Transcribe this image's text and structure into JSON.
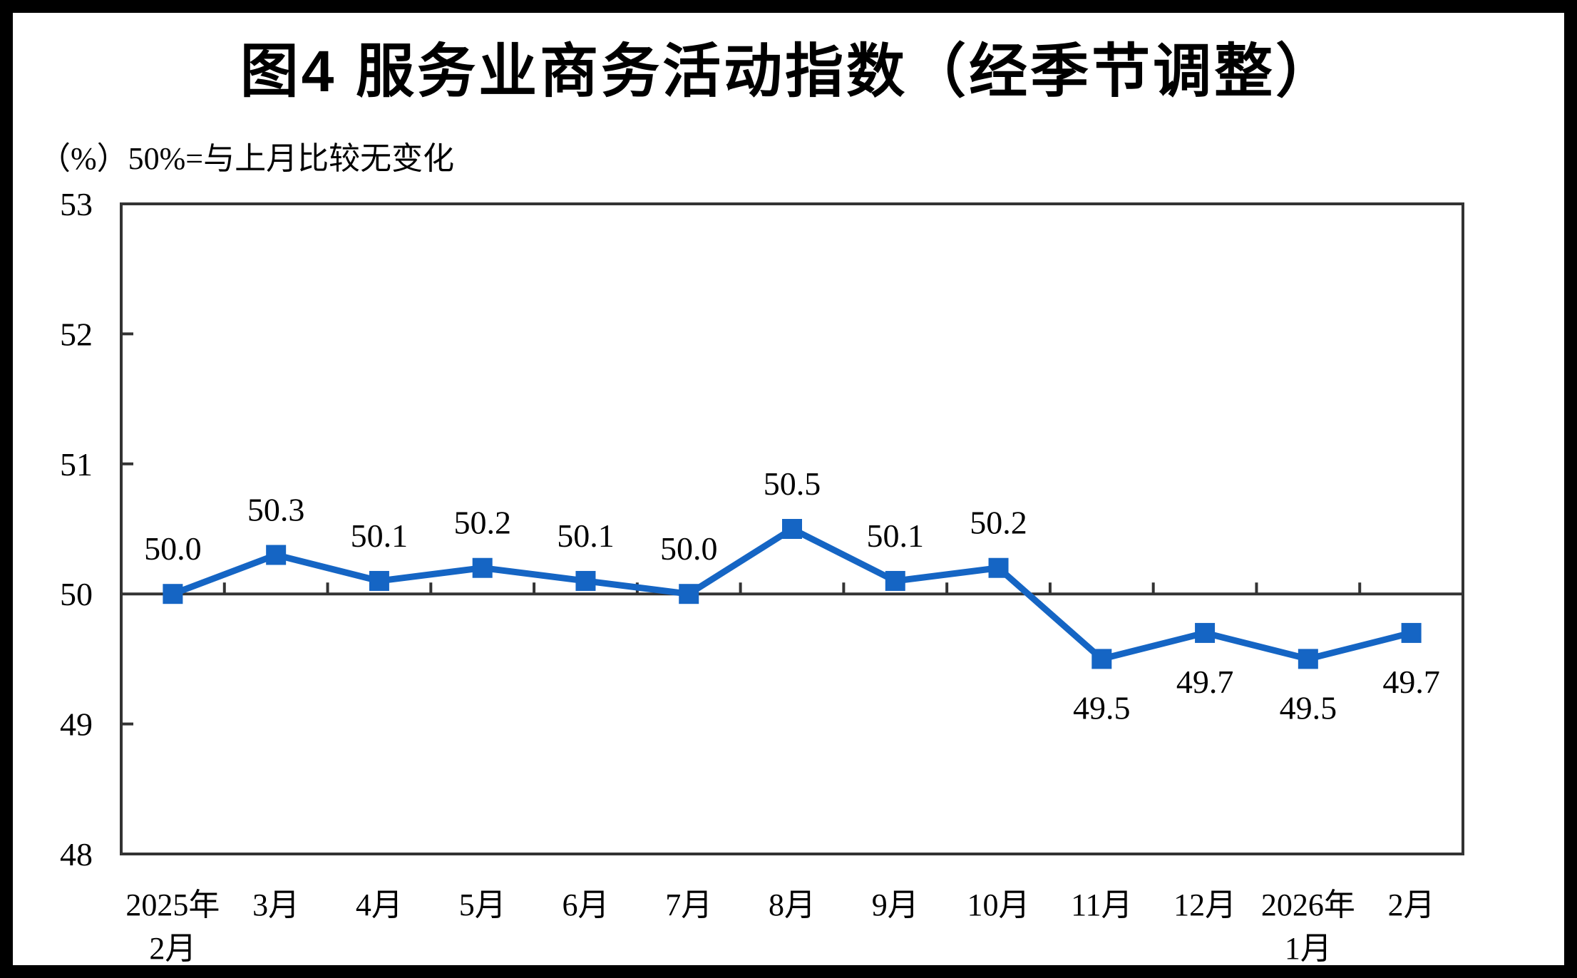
{
  "figure": {
    "title": "图4  服务业商务活动指数（经季节调整）",
    "unit_note": "（%）50%=与上月比较无变化"
  },
  "chart_data": {
    "type": "line",
    "title": "图4  服务业商务活动指数（经季节调整）",
    "unit_note": "（%）50%=与上月比较无变化",
    "categories": [
      "2025年\n2月",
      "3月",
      "4月",
      "5月",
      "6月",
      "7月",
      "8月",
      "9月",
      "10月",
      "11月",
      "12月",
      "2026年\n1月",
      "2月"
    ],
    "series": [
      {
        "name": "服务业商务活动指数",
        "values": [
          50.0,
          50.3,
          50.1,
          50.2,
          50.1,
          50.0,
          50.5,
          50.1,
          50.2,
          49.5,
          49.7,
          49.5,
          49.7
        ]
      }
    ],
    "data_labels": [
      "50.0",
      "50.3",
      "50.1",
      "50.2",
      "50.1",
      "50.0",
      "50.5",
      "50.1",
      "50.2",
      "49.5",
      "49.7",
      "49.5",
      "49.7"
    ],
    "ylim": [
      48,
      53
    ],
    "y_ticks": [
      48,
      49,
      50,
      51,
      52,
      53
    ],
    "reference_line_value": 50,
    "grid": false,
    "legend_position": "none",
    "marker_style": "square",
    "colors": {
      "line": "#1565C4",
      "axis": "#333333",
      "text": "#000000"
    }
  }
}
